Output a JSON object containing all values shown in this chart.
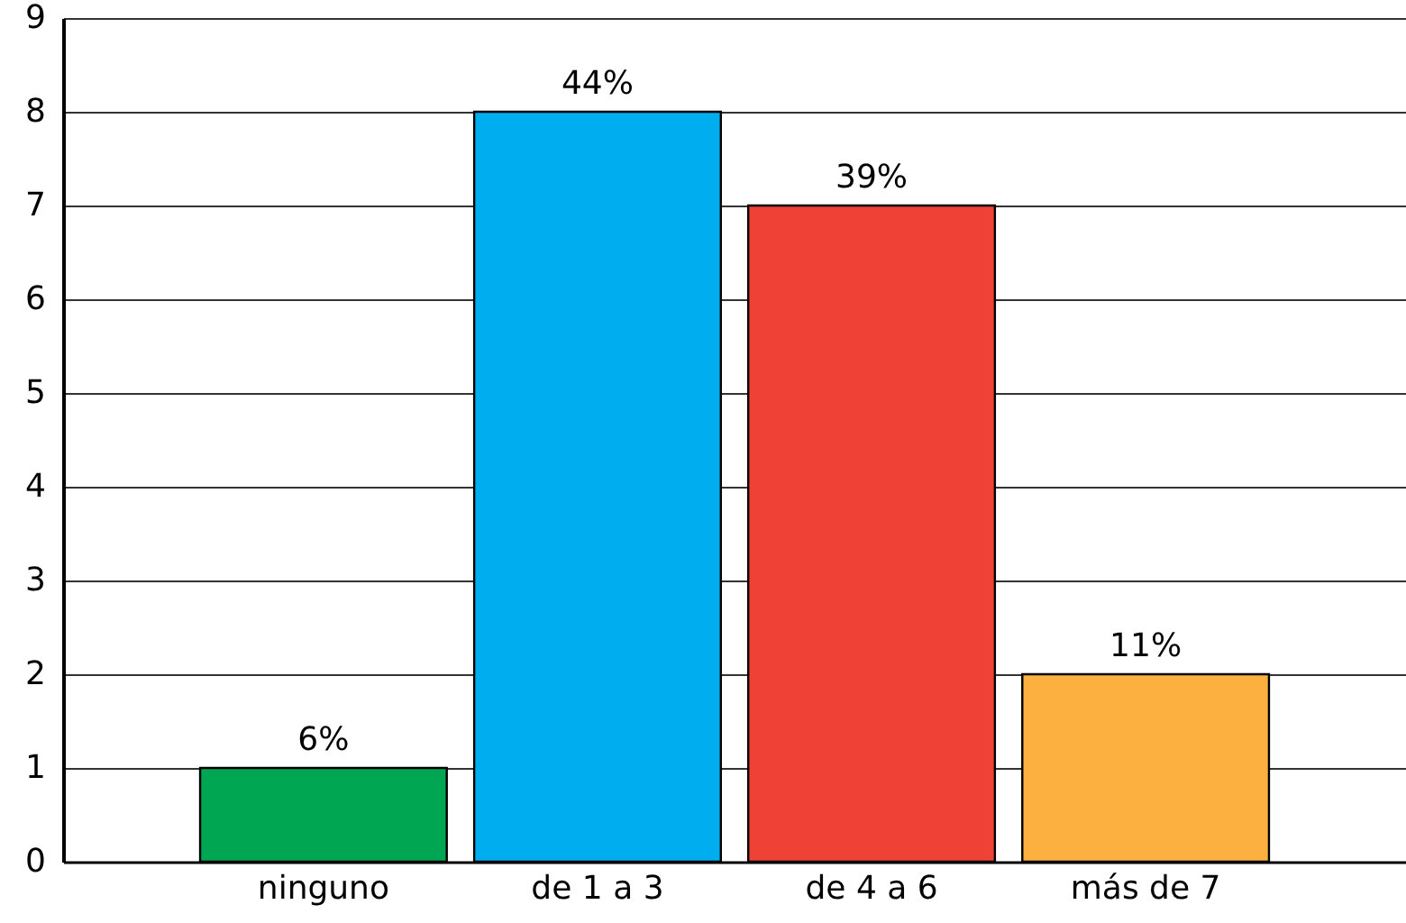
{
  "chart_data": {
    "type": "bar",
    "categories": [
      "ninguno",
      "de 1 a 3",
      "de 4 a 6",
      "más de 7"
    ],
    "values": [
      1,
      8,
      7,
      2
    ],
    "colors": [
      "#00a651",
      "#00adef",
      "#ef4136",
      "#fbb040"
    ],
    "annotations": [
      {
        "text": "6%",
        "x": "ninguno",
        "y": 1
      },
      {
        "text": "44%",
        "x": "de 1 a 3",
        "y": 8
      },
      {
        "text": "39%",
        "x": "de 4 a 6",
        "y": 7
      },
      {
        "text": "11%",
        "x": "más de 7",
        "y": 2
      }
    ],
    "ylim": [
      0,
      9
    ],
    "yticks": [
      0,
      1,
      2,
      3,
      4,
      5,
      6,
      7,
      8,
      9
    ],
    "grid": "y"
  }
}
